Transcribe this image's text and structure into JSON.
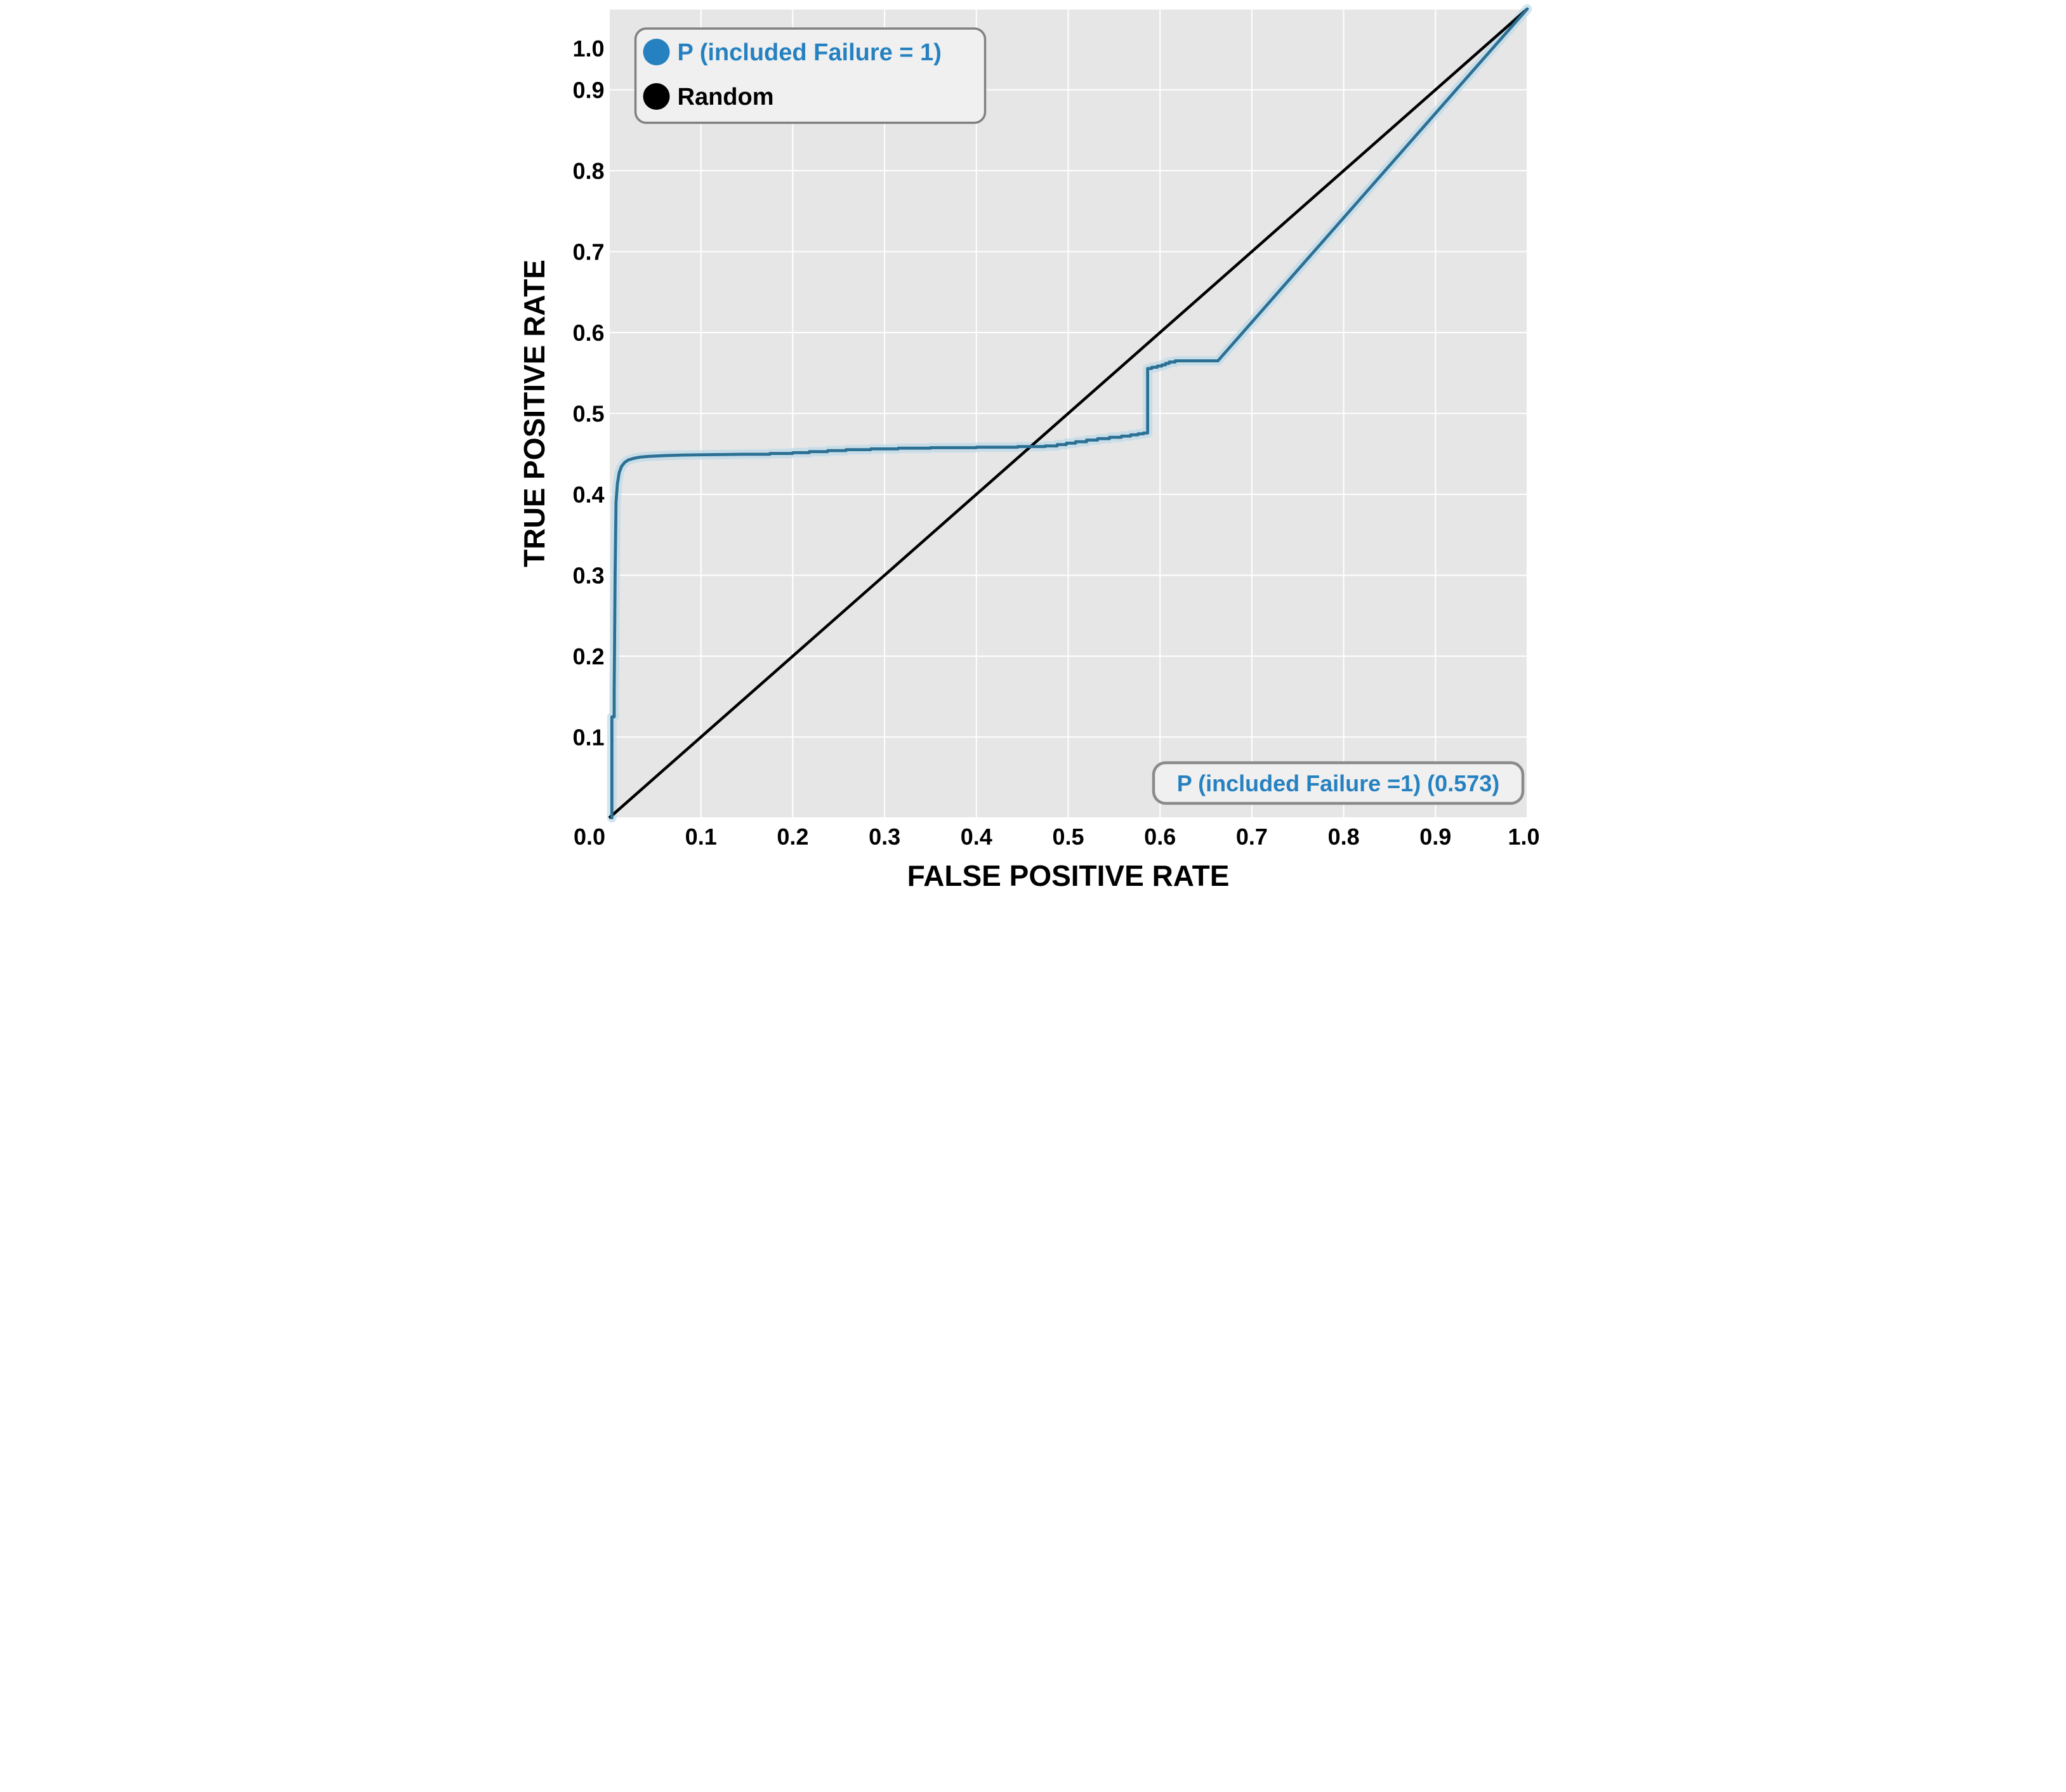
{
  "figure": {
    "background": "#ffffff",
    "plot_background": "#e6e6e6",
    "gridline_color": "#ffffff",
    "tick_color": "#000000",
    "axis_title_color": "#000000"
  },
  "legend": {
    "items": [
      {
        "label": "P (included Failure = 1)",
        "color": "#2681c0"
      },
      {
        "label": "Random",
        "color": "#000000"
      }
    ]
  },
  "annotation": {
    "label": "P (included Failure =1) (0.573)",
    "color": "#2681c0"
  },
  "chart_data": {
    "type": "line",
    "title": "",
    "xlabel": "FALSE POSITIVE RATE",
    "ylabel": "TRUE POSITIVE RATE",
    "xlim": [
      0,
      1
    ],
    "ylim": [
      0,
      1
    ],
    "grid": true,
    "legend_position": "top-left",
    "x_ticks": {
      "values": [
        0,
        0.1,
        0.2,
        0.3,
        0.4,
        0.5,
        0.6,
        0.7,
        0.8,
        0.9,
        1.0
      ],
      "labels": [
        "0.0",
        "0.1",
        "0.2",
        "0.3",
        "0.4",
        "0.5",
        "0.6",
        "0.7",
        "0.8",
        "0.9",
        "1.0"
      ]
    },
    "y_ticks": {
      "values": [
        0.1,
        0.2,
        0.3,
        0.4,
        0.5,
        0.6,
        0.7,
        0.8,
        0.9,
        1.0
      ],
      "labels": [
        "0.1",
        "0.2",
        "0.3",
        "0.4",
        "0.5",
        "0.6",
        "0.7",
        "0.8",
        "0.9",
        "1.0"
      ]
    },
    "series": [
      {
        "name": "P (included Failure = 1)",
        "auc": 0.573,
        "color": "#2c7094",
        "halo_color": "#b9d8ea",
        "points": [
          [
            0.003,
            0.0
          ],
          [
            0.003,
            0.125
          ],
          [
            0.0055,
            0.125
          ],
          [
            0.0055,
            0.155
          ],
          [
            0.0065,
            0.3
          ],
          [
            0.0075,
            0.39
          ],
          [
            0.009,
            0.413
          ],
          [
            0.011,
            0.427
          ],
          [
            0.0135,
            0.4345
          ],
          [
            0.017,
            0.4395
          ],
          [
            0.021,
            0.4425
          ],
          [
            0.027,
            0.4445
          ],
          [
            0.034,
            0.446
          ],
          [
            0.044,
            0.447
          ],
          [
            0.06,
            0.4478
          ],
          [
            0.08,
            0.4485
          ],
          [
            0.11,
            0.449
          ],
          [
            0.145,
            0.4495
          ],
          [
            0.175,
            0.4495
          ],
          [
            0.175,
            0.4505
          ],
          [
            0.2,
            0.4505
          ],
          [
            0.2,
            0.4515
          ],
          [
            0.218,
            0.4515
          ],
          [
            0.218,
            0.4528
          ],
          [
            0.238,
            0.4528
          ],
          [
            0.238,
            0.454
          ],
          [
            0.258,
            0.454
          ],
          [
            0.258,
            0.4552
          ],
          [
            0.285,
            0.4552
          ],
          [
            0.285,
            0.4562
          ],
          [
            0.315,
            0.4562
          ],
          [
            0.315,
            0.457
          ],
          [
            0.35,
            0.457
          ],
          [
            0.35,
            0.4576
          ],
          [
            0.4,
            0.4576
          ],
          [
            0.4,
            0.4582
          ],
          [
            0.445,
            0.4582
          ],
          [
            0.445,
            0.459
          ],
          [
            0.475,
            0.459
          ],
          [
            0.475,
            0.4598
          ],
          [
            0.488,
            0.4598
          ],
          [
            0.488,
            0.4615
          ],
          [
            0.498,
            0.4615
          ],
          [
            0.498,
            0.4632
          ],
          [
            0.508,
            0.4632
          ],
          [
            0.508,
            0.465
          ],
          [
            0.52,
            0.465
          ],
          [
            0.52,
            0.467
          ],
          [
            0.532,
            0.467
          ],
          [
            0.532,
            0.4688
          ],
          [
            0.545,
            0.4688
          ],
          [
            0.545,
            0.4705
          ],
          [
            0.558,
            0.4705
          ],
          [
            0.558,
            0.472
          ],
          [
            0.568,
            0.472
          ],
          [
            0.568,
            0.4735
          ],
          [
            0.576,
            0.4735
          ],
          [
            0.576,
            0.4748
          ],
          [
            0.582,
            0.4748
          ],
          [
            0.582,
            0.4758
          ],
          [
            0.5865,
            0.4758
          ],
          [
            0.5865,
            0.5555
          ],
          [
            0.591,
            0.5555
          ],
          [
            0.591,
            0.557
          ],
          [
            0.597,
            0.557
          ],
          [
            0.597,
            0.5585
          ],
          [
            0.602,
            0.5585
          ],
          [
            0.602,
            0.56
          ],
          [
            0.606,
            0.56
          ],
          [
            0.606,
            0.5618
          ],
          [
            0.61,
            0.5618
          ],
          [
            0.61,
            0.5635
          ],
          [
            0.6165,
            0.5635
          ],
          [
            0.6165,
            0.565
          ],
          [
            0.663,
            0.565
          ],
          [
            1.0,
            1.0
          ]
        ]
      },
      {
        "name": "Random",
        "color": "#000000",
        "points": [
          [
            0,
            0
          ],
          [
            1,
            1
          ]
        ]
      }
    ]
  }
}
